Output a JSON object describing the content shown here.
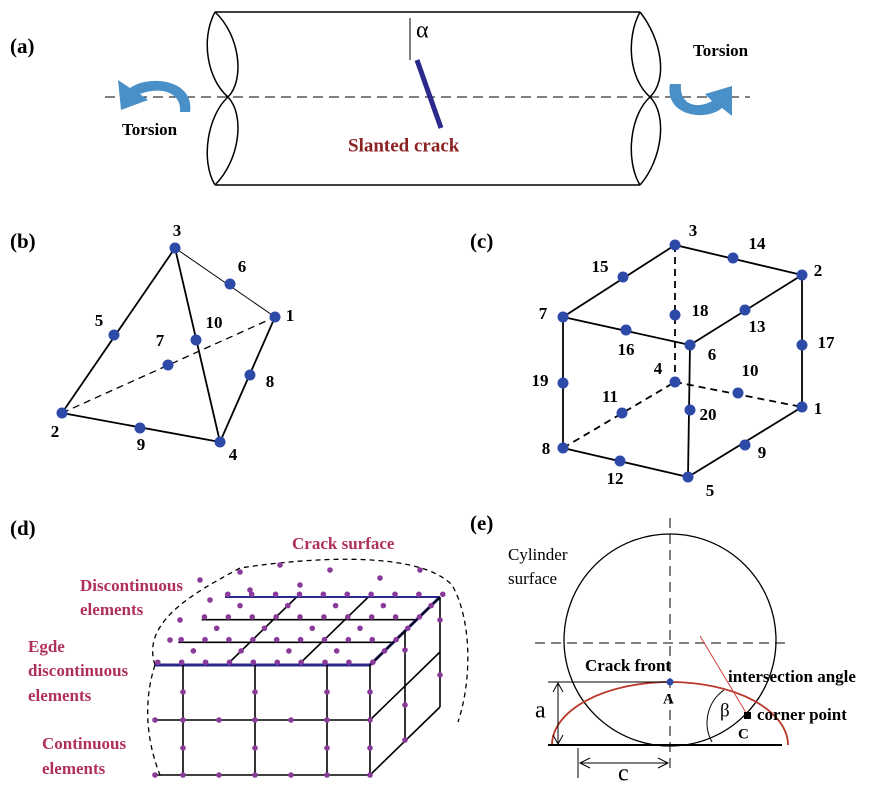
{
  "panels": {
    "a": {
      "label": "(a)",
      "alpha": "α",
      "torsion_left": "Torsion",
      "torsion_right": "Torsion",
      "crack": "Slanted crack"
    },
    "b": {
      "label": "(b)",
      "nodes": [
        "1",
        "2",
        "3",
        "4",
        "5",
        "6",
        "7",
        "8",
        "9",
        "10"
      ]
    },
    "c": {
      "label": "(c)",
      "nodes": [
        "1",
        "2",
        "3",
        "4",
        "5",
        "6",
        "7",
        "8",
        "9",
        "10",
        "11",
        "12",
        "13",
        "14",
        "15",
        "16",
        "17",
        "18",
        "19",
        "20"
      ]
    },
    "d": {
      "label": "(d)",
      "crack_surface": "Crack surface",
      "discontinuous": [
        "Discontinuous",
        "elements"
      ],
      "edge_discontinuous": [
        "Egde",
        "discontinuous",
        "elements"
      ],
      "continuous": [
        "Continuous",
        "elements"
      ]
    },
    "e": {
      "label": "(e)",
      "cylinder": [
        "Cylinder",
        "surface"
      ],
      "crack_front": "Crack front",
      "point_a": "A",
      "intersection_angle": "intersection angle",
      "beta": "β",
      "corner_point": "corner point",
      "point_c": "C",
      "depth": "a",
      "half_length": "c"
    }
  }
}
